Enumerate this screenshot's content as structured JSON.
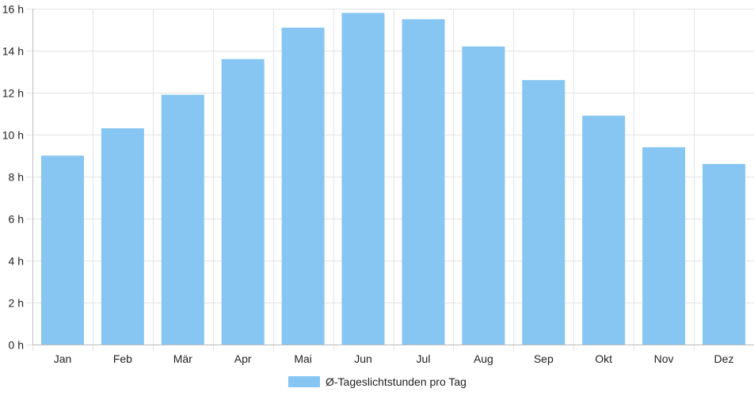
{
  "chart_data": {
    "type": "bar",
    "categories": [
      "Jan",
      "Feb",
      "Mär",
      "Apr",
      "Mai",
      "Jun",
      "Jul",
      "Aug",
      "Sep",
      "Okt",
      "Nov",
      "Dez"
    ],
    "series": [
      {
        "name": "Ø-Tageslichtstunden pro Tag",
        "values": [
          9.0,
          10.3,
          11.9,
          13.6,
          15.1,
          15.8,
          15.5,
          14.2,
          12.6,
          10.9,
          9.4,
          8.6
        ],
        "color": "#87C6F2"
      }
    ],
    "title": "",
    "xlabel": "",
    "ylabel": "",
    "ylim": [
      0,
      16
    ],
    "yticks": [
      "0 h",
      "2 h",
      "4 h",
      "6 h",
      "8 h",
      "10 h",
      "12 h",
      "14 h",
      "16 h"
    ],
    "grid": true,
    "legend_position": "bottom"
  },
  "colors": {
    "bar": "#87C6F2",
    "grid": "#e3e3e3",
    "axis": "#bdbdbd",
    "text": "#222222"
  }
}
